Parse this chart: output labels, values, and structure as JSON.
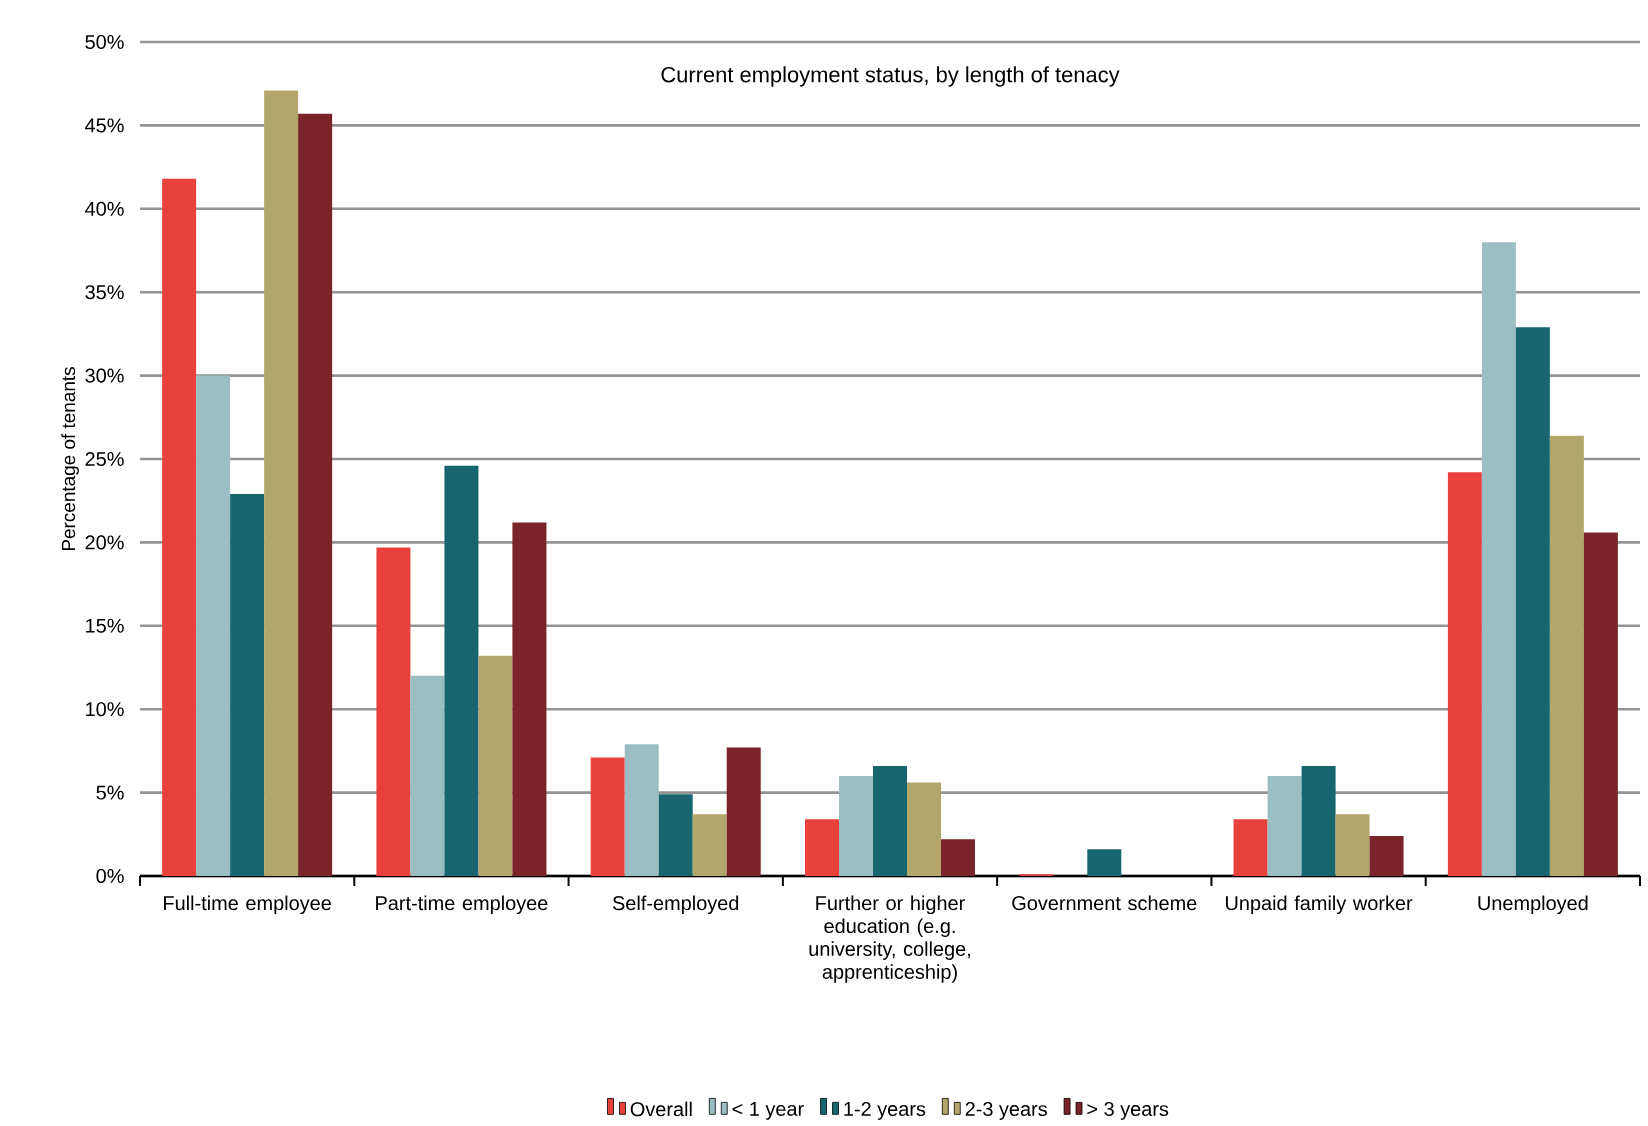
{
  "chart_data": {
    "type": "bar",
    "title": "Current employment status, by length of tenacy",
    "ylabel": "Percentage of tenants",
    "categories": [
      "Full-time employee",
      "Part-time employee",
      "Self-employed",
      "Further or higher education (e.g. university, college, apprenticeship)",
      "Government scheme",
      "Unpaid family worker",
      "Unemployed"
    ],
    "series": [
      {
        "name": "Overall",
        "color": "#e8403a",
        "values": [
          41.8,
          19.7,
          7.1,
          3.4,
          0.1,
          3.4,
          24.2
        ]
      },
      {
        "name": "< 1 year",
        "color": "#9bbec3",
        "values": [
          30.0,
          12.0,
          7.9,
          6.0,
          0,
          6.0,
          38.0
        ]
      },
      {
        "name": "1-2 years",
        "color": "#17666f",
        "values": [
          22.9,
          24.6,
          4.9,
          6.6,
          1.6,
          6.6,
          32.9
        ]
      },
      {
        "name": "2-3 years",
        "color": "#b3a66a",
        "values": [
          47.1,
          13.2,
          3.7,
          5.6,
          0,
          3.7,
          26.4
        ]
      },
      {
        "name": "> 3 years",
        "color": "#7a2328",
        "values": [
          45.7,
          21.2,
          7.7,
          2.2,
          0,
          2.4,
          20.6
        ]
      }
    ],
    "ylim": [
      0,
      50
    ],
    "yticks": [
      {
        "value": 0,
        "label": "0%"
      },
      {
        "value": 5,
        "label": "5%"
      },
      {
        "value": 10,
        "label": "10%"
      },
      {
        "value": 15,
        "label": "15%"
      },
      {
        "value": 20,
        "label": "20%"
      },
      {
        "value": 25,
        "label": "25%"
      },
      {
        "value": 30,
        "label": "30%"
      },
      {
        "value": 35,
        "label": "35%"
      },
      {
        "value": 40,
        "label": "40%"
      },
      {
        "value": 45,
        "label": "45%"
      },
      {
        "value": 50,
        "label": "50%"
      }
    ],
    "grid": "y",
    "legend": "bottom"
  }
}
